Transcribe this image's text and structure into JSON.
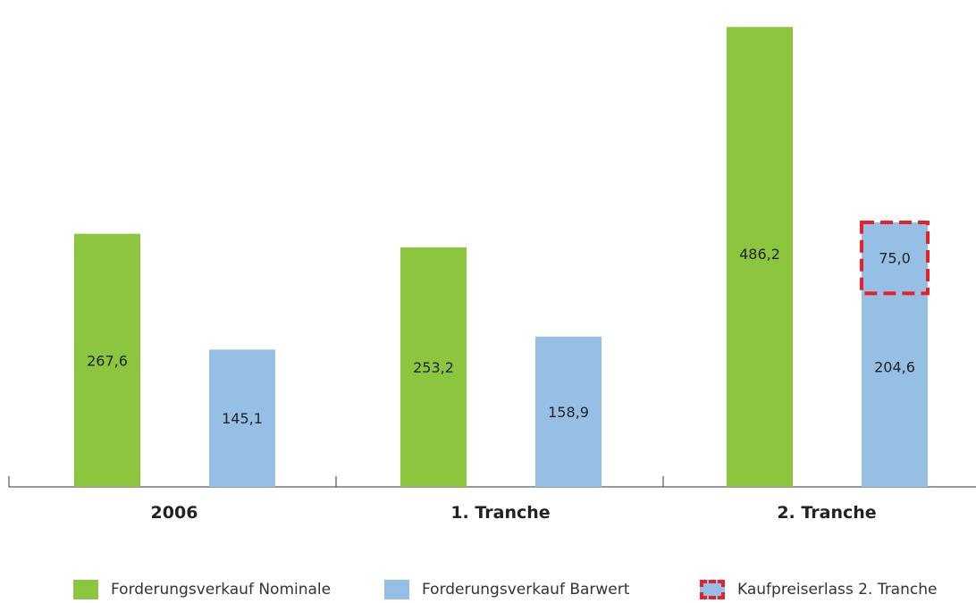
{
  "chart_data": {
    "type": "bar",
    "title": "",
    "xlabel": "",
    "ylabel": "",
    "categories": [
      "2006",
      "1. Tranche",
      "2. Tranche"
    ],
    "series": [
      {
        "name": "Forderungsverkauf Nominale",
        "color": "#8cc63f",
        "values": [
          267.6,
          253.2,
          486.2
        ],
        "labels": [
          "267,6",
          "253,2",
          "486,2"
        ]
      },
      {
        "name": "Forderungsverkauf Barwert",
        "color": "#96bfe6",
        "values": [
          145.1,
          158.9,
          204.6
        ],
        "labels": [
          "145,1",
          "158,9",
          "204,6"
        ]
      },
      {
        "name": "Kaufpreiserlass 2. Tranche",
        "color": "#96bfe6",
        "border_color": "#e8202a",
        "stacked_on": "Forderungsverkauf Barwert",
        "values": [
          null,
          null,
          75.0
        ],
        "labels": [
          null,
          null,
          "75,0"
        ]
      }
    ],
    "ylim": [
      0,
      500
    ],
    "grid": false,
    "legend_position": "bottom"
  }
}
